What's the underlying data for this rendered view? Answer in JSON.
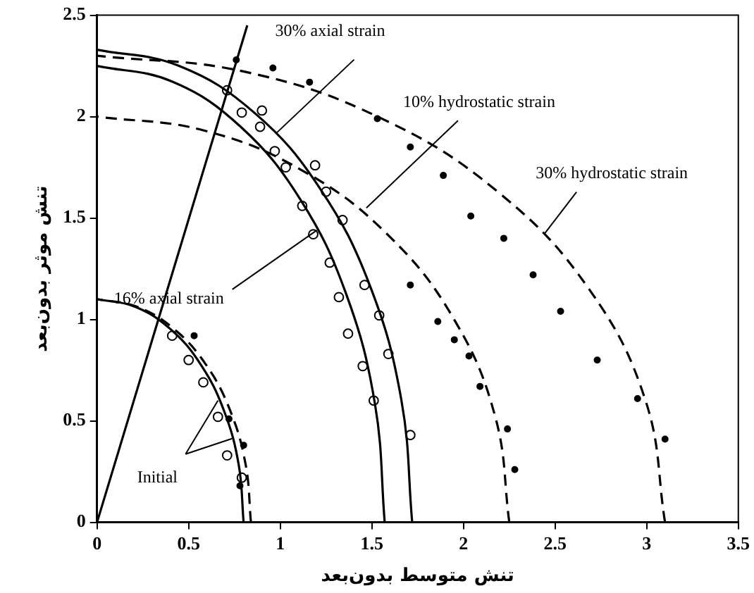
{
  "chart_data": {
    "type": "line",
    "xlabel": "تنش متوسط بدون‌بعد",
    "ylabel": "تنش موثر بدون‌بعد",
    "xlim": [
      0,
      3.5
    ],
    "xticks": [
      0,
      0.5,
      1,
      1.5,
      2,
      2.5,
      3,
      3.5
    ],
    "ylim": [
      0,
      2.5
    ],
    "yticks": [
      0,
      0.5,
      1,
      1.5,
      2,
      2.5
    ],
    "grid": false,
    "legend": false,
    "series": [
      {
        "type": "line",
        "color": "#000000",
        "line_style": "solid",
        "x": [
          0.8,
          0.773,
          0.693,
          0.566,
          0.4,
          0.207,
          0
        ],
        "values": [
          0,
          0.285,
          0.55,
          0.778,
          0.953,
          1.063,
          1.1
        ]
      },
      {
        "type": "line",
        "color": "#000000",
        "line_style": "dashed",
        "x": [
          0.84,
          0.811,
          0.727,
          0.594,
          0.42,
          0.218,
          0
        ],
        "values": [
          0,
          0.285,
          0.55,
          0.778,
          0.953,
          1.063,
          1.1
        ]
      },
      {
        "type": "line",
        "color": "#000000",
        "line_style": "solid",
        "x": [
          1.57,
          1.517,
          1.36,
          1.11,
          0.785,
          0.407,
          0
        ],
        "values": [
          0,
          0.583,
          1.125,
          1.591,
          1.949,
          2.174,
          2.25
        ]
      },
      {
        "type": "line",
        "color": "#000000",
        "line_style": "solid",
        "x": [
          1.72,
          1.661,
          1.49,
          1.216,
          0.86,
          0.445,
          0
        ],
        "values": [
          0,
          0.603,
          1.165,
          1.647,
          2.018,
          2.251,
          2.33
        ]
      },
      {
        "type": "line",
        "color": "#000000",
        "line_style": "dashed",
        "x": [
          2.25,
          2.174,
          1.949,
          1.591,
          1.125,
          0.583,
          0
        ],
        "values": [
          0,
          0.518,
          1.0,
          1.414,
          1.732,
          1.932,
          2.0
        ]
      },
      {
        "type": "line",
        "color": "#000000",
        "line_style": "dashed",
        "x": [
          3.1,
          2.995,
          2.685,
          2.192,
          1.55,
          0.803,
          0
        ],
        "values": [
          0,
          0.596,
          1.15,
          1.626,
          1.992,
          2.222,
          2.3
        ]
      },
      {
        "type": "line",
        "color": "#000000",
        "line_style": "solid",
        "x": [
          0,
          0.82
        ],
        "values": [
          0,
          2.45
        ]
      },
      {
        "type": "scatter",
        "color": "#000000",
        "marker": "circle",
        "x": [
          0.71,
          0.79,
          0.9,
          0.89,
          0.97,
          1.03,
          1.19,
          1.12,
          1.25,
          1.34,
          1.18,
          1.27,
          1.46,
          1.32,
          1.37,
          1.45,
          1.51,
          1.54,
          1.59,
          1.71,
          0.41,
          0.5,
          0.58,
          0.66,
          0.71,
          0.79
        ],
        "values": [
          2.13,
          2.02,
          2.03,
          1.95,
          1.83,
          1.75,
          1.76,
          1.56,
          1.63,
          1.49,
          1.42,
          1.28,
          1.17,
          1.11,
          0.93,
          0.77,
          0.6,
          1.02,
          0.83,
          0.43,
          0.92,
          0.8,
          0.69,
          0.52,
          0.33,
          0.22
        ]
      },
      {
        "type": "scatter",
        "color": "#000000",
        "marker": "circle",
        "x": [
          0.53,
          0.72,
          0.8,
          0.78,
          0.76,
          0.96,
          1.16,
          1.53,
          1.71,
          1.89,
          2.04,
          2.22,
          2.38,
          1.71,
          1.86,
          1.95,
          2.03,
          2.09,
          2.24,
          2.28,
          2.53,
          2.73,
          2.95,
          3.1
        ],
        "values": [
          0.92,
          0.51,
          0.38,
          0.18,
          2.28,
          2.24,
          2.17,
          1.99,
          1.85,
          1.71,
          1.51,
          1.4,
          1.22,
          1.17,
          0.99,
          0.9,
          0.82,
          0.67,
          0.46,
          0.26,
          1.04,
          0.8,
          0.61,
          0.41
        ]
      }
    ],
    "annotations": [
      {
        "text": "30% axial strain",
        "x": 0.98,
        "y": 1.92
      },
      {
        "text": "10% hydrostatic strain",
        "x": 1.47,
        "y": 1.55
      },
      {
        "text": "30% hydrostatic strain",
        "x": 2.44,
        "y": 1.42
      },
      {
        "text": "16% axial strain",
        "x": 1.2,
        "y": 1.44
      },
      {
        "text": "Initial",
        "x": 0.66,
        "y": 0.6
      }
    ]
  }
}
